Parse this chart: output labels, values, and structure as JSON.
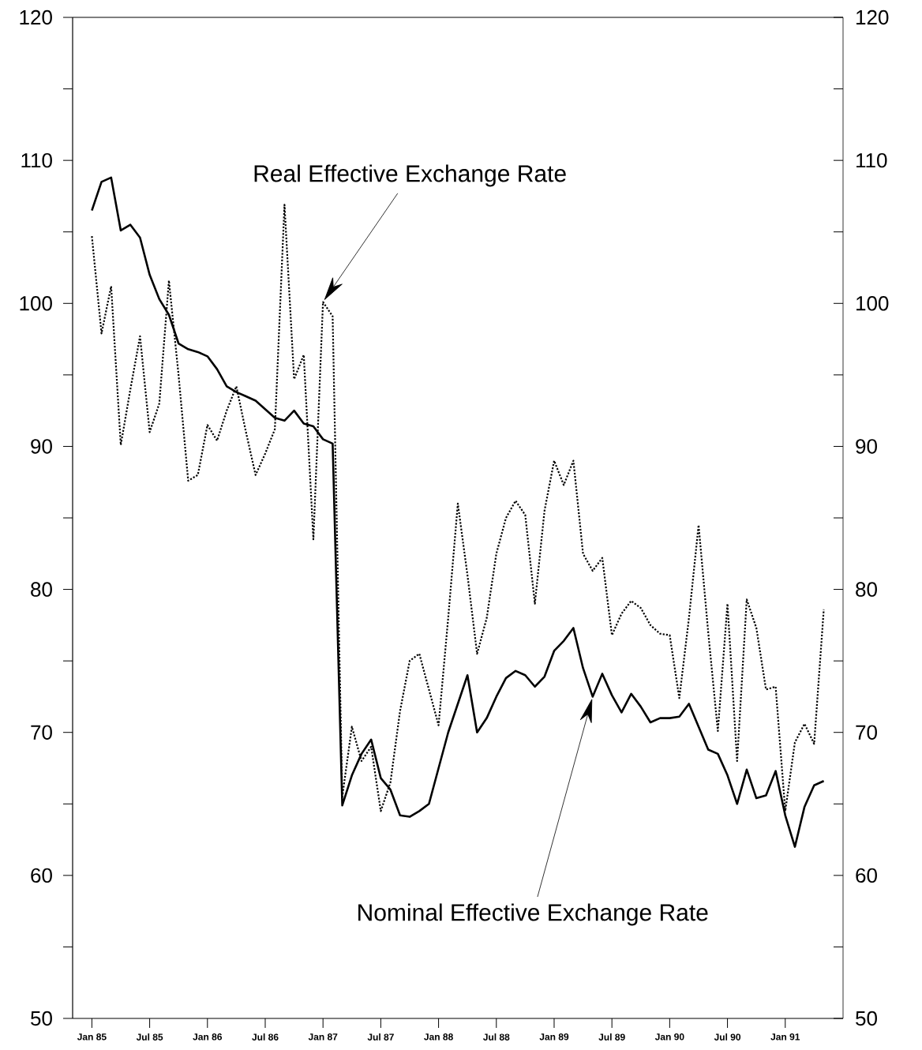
{
  "chart_data": {
    "type": "line",
    "x": [
      "1985-01",
      "1985-02",
      "1985-03",
      "1985-04",
      "1985-05",
      "1985-06",
      "1985-07",
      "1985-08",
      "1985-09",
      "1985-10",
      "1985-11",
      "1985-12",
      "1986-01",
      "1986-02",
      "1986-03",
      "1986-04",
      "1986-05",
      "1986-06",
      "1986-07",
      "1986-08",
      "1986-09",
      "1986-10",
      "1986-11",
      "1986-12",
      "1987-01",
      "1987-02",
      "1987-03",
      "1987-04",
      "1987-05",
      "1987-06",
      "1987-07",
      "1987-08",
      "1987-09",
      "1987-10",
      "1987-11",
      "1987-12",
      "1988-01",
      "1988-02",
      "1988-03",
      "1988-04",
      "1988-05",
      "1988-06",
      "1988-07",
      "1988-08",
      "1988-09",
      "1988-10",
      "1988-11",
      "1988-12",
      "1989-01",
      "1989-02",
      "1989-03",
      "1989-04",
      "1989-05",
      "1989-06",
      "1989-07",
      "1989-08",
      "1989-09",
      "1989-10",
      "1989-11",
      "1989-12",
      "1990-01",
      "1990-02",
      "1990-03",
      "1990-04",
      "1990-05",
      "1990-06",
      "1990-07",
      "1990-08",
      "1990-09",
      "1990-10",
      "1990-11",
      "1990-12",
      "1991-01",
      "1991-02",
      "1991-03",
      "1991-04",
      "1991-05"
    ],
    "series": [
      {
        "name": "Nominal Effective Exchange Rate",
        "color": "#000000",
        "line_style": "solid",
        "values": [
          106.5,
          108.5,
          108.8,
          105.1,
          105.5,
          104.6,
          102,
          100.3,
          99.2,
          97.2,
          96.8,
          96.6,
          96.3,
          95.4,
          94.2,
          93.8,
          93.5,
          93.2,
          92.6,
          92,
          91.8,
          92.5,
          91.6,
          91.4,
          90.5,
          90.2,
          64.9,
          67,
          68.5,
          69.5,
          66.8,
          66,
          64.2,
          64.1,
          64.5,
          65,
          67.5,
          70,
          72,
          74,
          70,
          71,
          72.5,
          73.8,
          74.3,
          74,
          73.2,
          73.9,
          75.7,
          76.4,
          77.3,
          74.5,
          72.5,
          74.1,
          72.6,
          71.4,
          72.7,
          71.8,
          70.7,
          71,
          71,
          71.1,
          72,
          70.4,
          68.8,
          68.5,
          67,
          65,
          67.4,
          65.4,
          65.6,
          67.3,
          64.2,
          62,
          64.8,
          66.3,
          66.6
        ]
      },
      {
        "name": "Real Effective Exchange Rate",
        "color": "#000000",
        "line_style": "dotted",
        "values": [
          104.7,
          97.9,
          101.2,
          90.1,
          94,
          97.7,
          91,
          93,
          101.6,
          95,
          87.6,
          88,
          91.5,
          90.4,
          92.5,
          94.2,
          91,
          88,
          89.5,
          91.2,
          106.9,
          94.7,
          96.4,
          83.5,
          100.1,
          99.1,
          65.5,
          70.4,
          68,
          69,
          64.5,
          66.5,
          71.5,
          75,
          75.5,
          73,
          70.5,
          78,
          86,
          81,
          75.5,
          78,
          82.5,
          85,
          86.2,
          85.2,
          79,
          85.5,
          89,
          87.3,
          89,
          82.5,
          81.3,
          82.2,
          76.8,
          78.3,
          79.2,
          78.7,
          77.5,
          76.9,
          76.8,
          72.4,
          78,
          84.5,
          77,
          70.1,
          79,
          68,
          79.3,
          77.3,
          73,
          73.2,
          64.5,
          69.3,
          70.6,
          69.2,
          78.6
        ]
      }
    ],
    "xlim": [
      "1984-11",
      "1991-07"
    ],
    "xticks": [
      {
        "value": "1985-01",
        "label": "Jan 85"
      },
      {
        "value": "1985-07",
        "label": "Jul 85"
      },
      {
        "value": "1986-01",
        "label": "Jan 86"
      },
      {
        "value": "1986-07",
        "label": "Jul 86"
      },
      {
        "value": "1987-01",
        "label": "Jan 87"
      },
      {
        "value": "1987-07",
        "label": "Jul 87"
      },
      {
        "value": "1988-01",
        "label": "Jan 88"
      },
      {
        "value": "1988-07",
        "label": "Jul 88"
      },
      {
        "value": "1989-01",
        "label": "Jan 89"
      },
      {
        "value": "1989-07",
        "label": "Jul 89"
      },
      {
        "value": "1990-01",
        "label": "Jan 90"
      },
      {
        "value": "1990-07",
        "label": "Jul 90"
      },
      {
        "value": "1991-01",
        "label": "Jan 91"
      }
    ],
    "ylim": [
      50,
      120
    ],
    "yticks": [
      50,
      {
        "value": 55,
        "label": null
      },
      60,
      {
        "value": 65,
        "label": null
      },
      70,
      {
        "value": 75,
        "label": null
      },
      80,
      {
        "value": 85,
        "label": null
      },
      90,
      {
        "value": 95,
        "label": null
      },
      100,
      {
        "value": 105,
        "label": null
      },
      110,
      {
        "value": 115,
        "label": null
      },
      120
    ],
    "y2lim": [
      50,
      120
    ],
    "y2ticks": [
      50,
      {
        "value": 55,
        "label": null
      },
      60,
      {
        "value": 65,
        "label": null
      },
      70,
      {
        "value": 75,
        "label": null
      },
      80,
      {
        "value": 85,
        "label": null
      },
      90,
      {
        "value": 95,
        "label": null
      },
      100,
      {
        "value": 105,
        "label": null
      },
      110,
      {
        "value": 115,
        "label": null
      },
      120
    ]
  }
}
